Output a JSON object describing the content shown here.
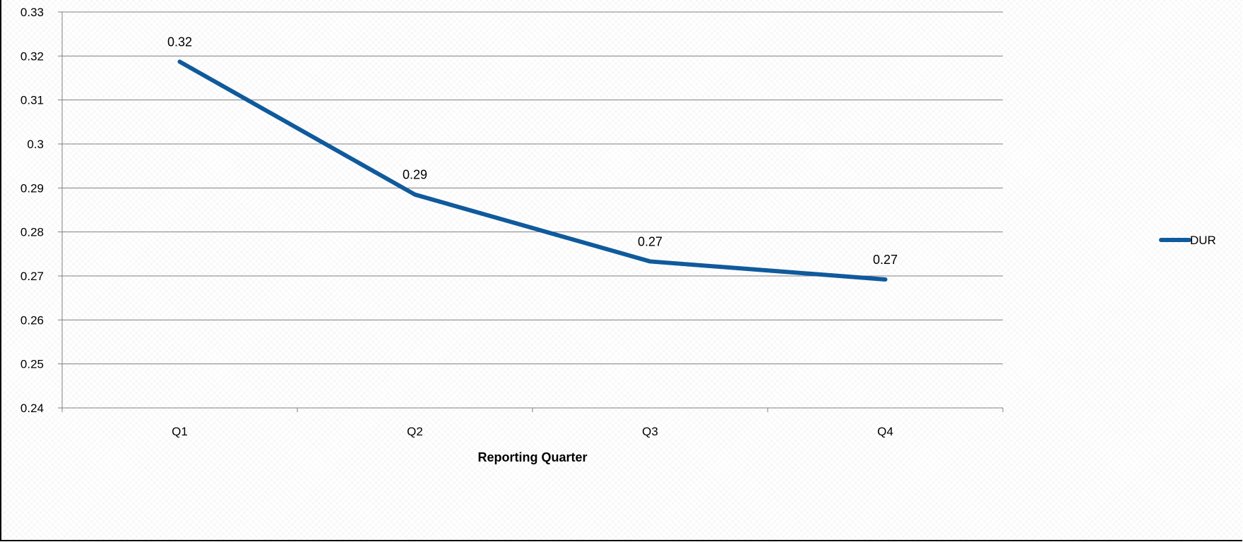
{
  "chart_data": {
    "type": "line",
    "categories": [
      "Q1",
      "Q2",
      "Q3",
      "Q4"
    ],
    "series": [
      {
        "name": "DUR",
        "values": [
          0.3187,
          0.2885,
          0.2733,
          0.2692
        ],
        "color": "#0F5A9C"
      }
    ],
    "data_labels": [
      "0.32",
      "0.29",
      "0.27",
      "0.27"
    ],
    "y_ticks": [
      "0.24",
      "0.25",
      "0.26",
      "0.27",
      "0.28",
      "0.29",
      "0.3",
      "0.31",
      "0.32",
      "0.33"
    ],
    "ylim": [
      0.24,
      0.33
    ],
    "xlabel": "Reporting Quarter",
    "ylabel": "",
    "title": "",
    "grid": true,
    "legend_position": "right"
  }
}
